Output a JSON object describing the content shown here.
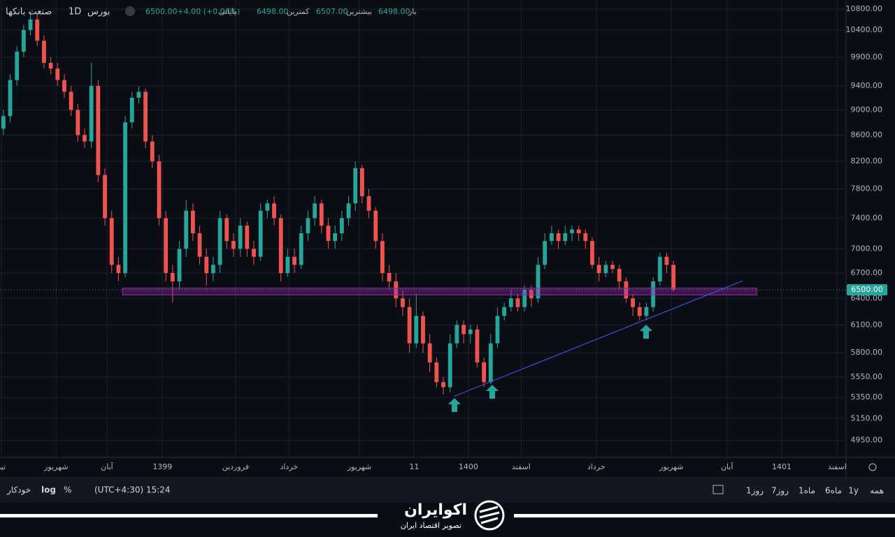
{
  "header": {
    "symbol": "صنعت بانکها",
    "interval": "1D",
    "exchange": "بورس",
    "close_text": "6500.00+4.00 (+0.06%)",
    "close_label": "پایانی",
    "low_text": "6498.00",
    "low_label": "کمترین",
    "high_text": "6507.00",
    "high_label": "بیشترین",
    "open_text": "6498.00",
    "open_label": "باز"
  },
  "chart_data": {
    "type": "candlestick",
    "log_scale": true,
    "grid": true,
    "up_color": "#26a69a",
    "down_color": "#ef5350",
    "xlim": [
      0,
      125
    ],
    "ylim": [
      4800,
      10980
    ],
    "yticks": [
      {
        "value": 10800,
        "label": "10800.00"
      },
      {
        "value": 10400,
        "label": "10400.00"
      },
      {
        "value": 9900,
        "label": "9900.00"
      },
      {
        "value": 9400,
        "label": "9400.00"
      },
      {
        "value": 9000,
        "label": "9000.00"
      },
      {
        "value": 8600,
        "label": "8600.00"
      },
      {
        "value": 8200,
        "label": "8200.00"
      },
      {
        "value": 7800,
        "label": "7800.00"
      },
      {
        "value": 7400,
        "label": "7400.00"
      },
      {
        "value": 7000,
        "label": "7000.00"
      },
      {
        "value": 6700,
        "label": "6700.00"
      },
      {
        "value": 6400,
        "label": "6400.00"
      },
      {
        "value": 6100,
        "label": "6100.00"
      },
      {
        "value": 5800,
        "label": "5800.00"
      },
      {
        "value": 5550,
        "label": "5550.00"
      },
      {
        "value": 5350,
        "label": "5350.00"
      },
      {
        "value": 5150,
        "label": "5150.00"
      },
      {
        "value": 4950,
        "label": "4950.00"
      }
    ],
    "xticks": [
      {
        "value": 0.2,
        "label": "تیر"
      },
      {
        "value": 8.3,
        "label": "شهریور"
      },
      {
        "value": 15.8,
        "label": "آبان"
      },
      {
        "value": 24,
        "label": "1399"
      },
      {
        "value": 34.8,
        "label": "فروردین"
      },
      {
        "value": 42.7,
        "label": "خرداد"
      },
      {
        "value": 53.1,
        "label": "شهریور"
      },
      {
        "value": 61.2,
        "label": "11"
      },
      {
        "value": 69.2,
        "label": "1400"
      },
      {
        "value": 77,
        "label": "اسفند"
      },
      {
        "value": 88.1,
        "label": "خرداد"
      },
      {
        "value": 99.2,
        "label": "شهریور"
      },
      {
        "value": 107.4,
        "label": "آبان"
      },
      {
        "value": 115.5,
        "label": "1401"
      },
      {
        "value": 123.7,
        "label": "اسفند"
      }
    ],
    "open": [
      8700,
      8900,
      9500,
      10000,
      10400,
      10600,
      10200,
      9800,
      9700,
      9500,
      9300,
      9000,
      8600,
      8500,
      9400,
      8000,
      7400,
      6800,
      6700,
      8800,
      9200,
      9300,
      8500,
      8200,
      7400,
      6700,
      6600,
      7000,
      7500,
      7200,
      6900,
      6700,
      6800,
      7400,
      7100,
      7000,
      7300,
      7000,
      6900,
      7500,
      7600,
      7400,
      6700,
      6900,
      6800,
      7200,
      7400,
      7600,
      7300,
      7100,
      7200,
      7400,
      7600,
      8100,
      7700,
      7500,
      7100,
      6700,
      6600,
      6400,
      6300,
      5900,
      6200,
      5900,
      5700,
      5500,
      5450,
      5900,
      6100,
      6000,
      6050,
      5700,
      5500,
      5900,
      6200,
      6300,
      6400,
      6300,
      6500,
      6400,
      6800,
      7100,
      7200,
      7100,
      7200,
      7250,
      7200,
      7100,
      6800,
      6700,
      6800,
      6750,
      6600,
      6400,
      6300,
      6200,
      6300,
      6600,
      6900,
      6800
    ],
    "high": [
      9000,
      9600,
      10100,
      10500,
      10750,
      10700,
      10300,
      9900,
      9800,
      9600,
      9400,
      9100,
      8700,
      9800,
      9500,
      8100,
      7500,
      6900,
      8900,
      9300,
      9400,
      9350,
      8600,
      8300,
      7500,
      6800,
      7100,
      7650,
      7600,
      7300,
      7000,
      6900,
      7500,
      7450,
      7200,
      7400,
      7350,
      7100,
      7600,
      7650,
      7700,
      7450,
      7000,
      7000,
      7300,
      7500,
      7700,
      7650,
      7400,
      7300,
      7500,
      7700,
      8200,
      8150,
      7800,
      7550,
      7200,
      6800,
      6700,
      6500,
      6400,
      6450,
      6250,
      6000,
      5750,
      5550,
      6000,
      6150,
      6150,
      6100,
      6100,
      5750,
      6000,
      6300,
      6350,
      6500,
      6450,
      6550,
      6550,
      6900,
      7200,
      7300,
      7250,
      7300,
      7300,
      7300,
      7250,
      7150,
      6900,
      6850,
      6850,
      6800,
      6650,
      6450,
      6350,
      6350,
      6650,
      6950,
      6950,
      6850
    ],
    "low": [
      8600,
      8800,
      9400,
      9900,
      10300,
      10100,
      9700,
      9600,
      9400,
      9200,
      8900,
      8500,
      8400,
      8400,
      7900,
      7300,
      6700,
      6600,
      6650,
      8700,
      9100,
      8400,
      8100,
      7300,
      6600,
      6350,
      6500,
      6900,
      7100,
      6800,
      6550,
      6600,
      6700,
      7000,
      6900,
      6900,
      6900,
      6800,
      6850,
      7400,
      7300,
      6600,
      6650,
      6700,
      6750,
      7100,
      7300,
      7200,
      7000,
      7000,
      7100,
      7300,
      7500,
      7600,
      7400,
      7000,
      6600,
      6500,
      6300,
      6200,
      5800,
      5850,
      5800,
      5600,
      5450,
      5380,
      5400,
      5850,
      5900,
      5900,
      5650,
      5450,
      5480,
      5850,
      6150,
      6250,
      6250,
      6250,
      6300,
      6350,
      6750,
      7050,
      7000,
      7050,
      7100,
      7100,
      7000,
      6750,
      6600,
      6650,
      6700,
      6500,
      6350,
      6200,
      6150,
      6150,
      6250,
      6550,
      6700,
      6480
    ],
    "close": [
      8900,
      9500,
      10000,
      10400,
      10600,
      10200,
      9800,
      9700,
      9500,
      9300,
      9000,
      8600,
      8500,
      9400,
      8000,
      7400,
      6800,
      6700,
      8800,
      9200,
      9300,
      8500,
      8200,
      7400,
      6700,
      6600,
      7000,
      7500,
      7200,
      6900,
      6700,
      6800,
      7400,
      7100,
      7000,
      7300,
      7000,
      6900,
      7500,
      7600,
      7400,
      6700,
      6900,
      6800,
      7200,
      7400,
      7600,
      7300,
      7100,
      7200,
      7400,
      7600,
      8100,
      7700,
      7500,
      7100,
      6700,
      6600,
      6400,
      6300,
      5900,
      6200,
      5900,
      5700,
      5500,
      5450,
      5900,
      6100,
      6000,
      6050,
      5700,
      5500,
      5900,
      6200,
      6300,
      6400,
      6300,
      6500,
      6400,
      6800,
      7100,
      7200,
      7100,
      7200,
      7250,
      7200,
      7100,
      6800,
      6700,
      6800,
      6750,
      6600,
      6400,
      6300,
      6200,
      6300,
      6600,
      6900,
      6800,
      6500
    ],
    "last_price": {
      "value": 6500,
      "label": "6500.00"
    },
    "zone": {
      "x": [
        18.1,
        111.8
      ],
      "y": [
        6440,
        6520
      ],
      "color": "#9c27b0"
    },
    "trendline": {
      "x": [
        67.1,
        109.7
      ],
      "y": [
        5361,
        6606
      ],
      "color": "#3f51d8"
    }
  },
  "toolbar": {
    "ranges": [
      "همه",
      "1y",
      "6ماه",
      "1ماه",
      "7روز",
      "1روز"
    ],
    "time": "(UTC+4:30) 15:24",
    "percent": "%",
    "log": "log",
    "auto": "خودکار"
  },
  "footer": {
    "brand": "اکوایران",
    "tagline": "تصویر اقتصاد ایران"
  }
}
